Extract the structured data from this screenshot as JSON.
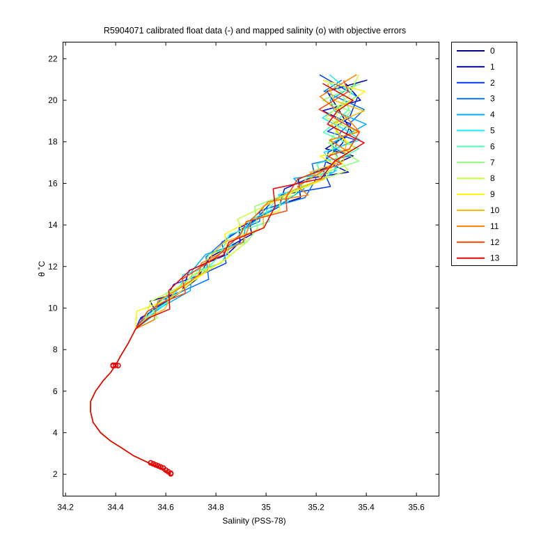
{
  "chart_data": {
    "type": "line",
    "title": "R5904071 calibrated float data (-) and mapped salinity (o) with objective errors",
    "xlabel": "Salinity (PSS-78)",
    "ylabel": "θ ˚C",
    "xlim": [
      34.19,
      35.69
    ],
    "ylim": [
      0.95,
      22.8
    ],
    "xticks": [
      "34.2",
      "34.4",
      "34.6",
      "34.8",
      "35",
      "35.2",
      "35.4",
      "35.6"
    ],
    "yticks": [
      "2",
      "4",
      "6",
      "8",
      "10",
      "12",
      "14",
      "16",
      "18",
      "20",
      "22"
    ],
    "grid": false,
    "legend_position": "outside-right",
    "series": [
      {
        "name": "0",
        "color": "#00008f"
      },
      {
        "name": "1",
        "color": "#0000d9"
      },
      {
        "name": "2",
        "color": "#0036ff"
      },
      {
        "name": "3",
        "color": "#0070ff"
      },
      {
        "name": "4",
        "color": "#00acff"
      },
      {
        "name": "5",
        "color": "#13e9ff"
      },
      {
        "name": "6",
        "color": "#4dffb2"
      },
      {
        "name": "7",
        "color": "#89ff76"
      },
      {
        "name": "8",
        "color": "#c4ff3b"
      },
      {
        "name": "9",
        "color": "#fff400"
      },
      {
        "name": "10",
        "color": "#ffb900"
      },
      {
        "name": "11",
        "color": "#ff7d00"
      },
      {
        "name": "12",
        "color": "#ff4100"
      },
      {
        "name": "13",
        "color": "#e80000"
      }
    ],
    "deep_profile": [
      [
        34.62,
        2.0
      ],
      [
        34.58,
        2.3
      ],
      [
        34.54,
        2.5
      ],
      [
        34.47,
        2.9
      ],
      [
        34.42,
        3.3
      ],
      [
        34.38,
        3.6
      ],
      [
        34.34,
        4.0
      ],
      [
        34.31,
        4.5
      ],
      [
        34.3,
        5.0
      ],
      [
        34.3,
        5.5
      ],
      [
        34.32,
        6.0
      ],
      [
        34.35,
        6.5
      ],
      [
        34.38,
        6.9
      ],
      [
        34.4,
        7.25
      ],
      [
        34.42,
        7.7
      ],
      [
        34.45,
        8.3
      ],
      [
        34.48,
        9.0
      ]
    ],
    "upper_profile": [
      [
        34.48,
        9.0
      ],
      [
        34.53,
        9.6
      ],
      [
        34.58,
        10.2
      ],
      [
        34.65,
        10.9
      ],
      [
        34.72,
        11.6
      ],
      [
        34.8,
        12.4
      ],
      [
        34.88,
        13.3
      ],
      [
        34.95,
        14.1
      ],
      [
        35.02,
        14.9
      ],
      [
        35.1,
        15.5
      ],
      [
        35.18,
        16.1
      ],
      [
        35.25,
        16.7
      ],
      [
        35.29,
        17.3
      ],
      [
        35.31,
        17.9
      ],
      [
        35.31,
        18.6
      ],
      [
        35.3,
        19.4
      ],
      [
        35.3,
        20.2
      ],
      [
        35.3,
        21.0
      ]
    ],
    "mapped_points": [
      [
        34.39,
        7.22
      ],
      [
        34.4,
        7.24
      ],
      [
        34.39,
        7.25
      ],
      [
        34.41,
        7.23
      ],
      [
        34.54,
        2.55
      ],
      [
        34.55,
        2.5
      ],
      [
        34.56,
        2.45
      ],
      [
        34.57,
        2.4
      ],
      [
        34.58,
        2.35
      ],
      [
        34.59,
        2.3
      ],
      [
        34.6,
        2.2
      ],
      [
        34.61,
        2.12
      ],
      [
        34.62,
        2.05
      ],
      [
        34.62,
        2.02
      ]
    ]
  }
}
